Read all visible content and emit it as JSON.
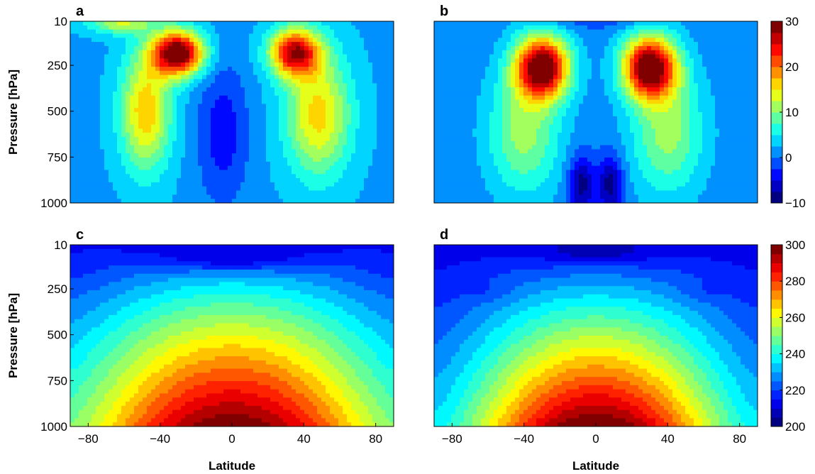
{
  "chart_data": [
    {
      "type": "heatmap",
      "panel": "a",
      "xlabel": "",
      "ylabel": "Pressure [hPa]",
      "xlim": [
        -90,
        90
      ],
      "ylim": [
        1000,
        10
      ],
      "yticks": [
        10,
        250,
        500,
        750,
        1000
      ],
      "xticks": [],
      "field": "zonal-wind",
      "centers": [
        {
          "x": -30,
          "y": 180,
          "value": 31
        },
        {
          "x": 35,
          "y": 180,
          "value": 26
        },
        {
          "x": -5,
          "y": 600,
          "value": -3
        }
      ]
    },
    {
      "type": "heatmap",
      "panel": "b",
      "xlabel": "",
      "ylabel": "",
      "xlim": [
        -90,
        90
      ],
      "ylim": [
        1000,
        10
      ],
      "yticks": [],
      "xticks": [],
      "field": "zonal-wind",
      "centers": [
        {
          "x": -30,
          "y": 250,
          "value": 30
        },
        {
          "x": 30,
          "y": 250,
          "value": 30
        },
        {
          "x": -8,
          "y": 900,
          "value": -9
        },
        {
          "x": 8,
          "y": 900,
          "value": -9
        }
      ],
      "colorbar": {
        "min": -10,
        "max": 30,
        "ticks": [
          -10,
          0,
          10,
          20,
          30
        ]
      }
    },
    {
      "type": "heatmap",
      "panel": "c",
      "xlabel": "Latitude",
      "ylabel": "Pressure [hPa]",
      "xlim": [
        -90,
        90
      ],
      "ylim": [
        1000,
        10
      ],
      "yticks": [
        10,
        250,
        500,
        750,
        1000
      ],
      "xticks": [
        -80,
        -40,
        0,
        40,
        80
      ],
      "field": "temperature",
      "centers": [
        {
          "x": 0,
          "y": 1000,
          "value": 300
        },
        {
          "x": 0,
          "y": 100,
          "value": 200
        }
      ]
    },
    {
      "type": "heatmap",
      "panel": "d",
      "xlabel": "Latitude",
      "ylabel": "",
      "xlim": [
        -90,
        90
      ],
      "ylim": [
        1000,
        10
      ],
      "yticks": [],
      "xticks": [
        -80,
        -40,
        0,
        40,
        80
      ],
      "field": "temperature",
      "centers": [
        {
          "x": 0,
          "y": 1000,
          "value": 300
        },
        {
          "x": 0,
          "y": 60,
          "value": 200
        }
      ],
      "colorbar": {
        "min": 200,
        "max": 300,
        "ticks": [
          200,
          220,
          240,
          260,
          280,
          300
        ]
      }
    }
  ]
}
